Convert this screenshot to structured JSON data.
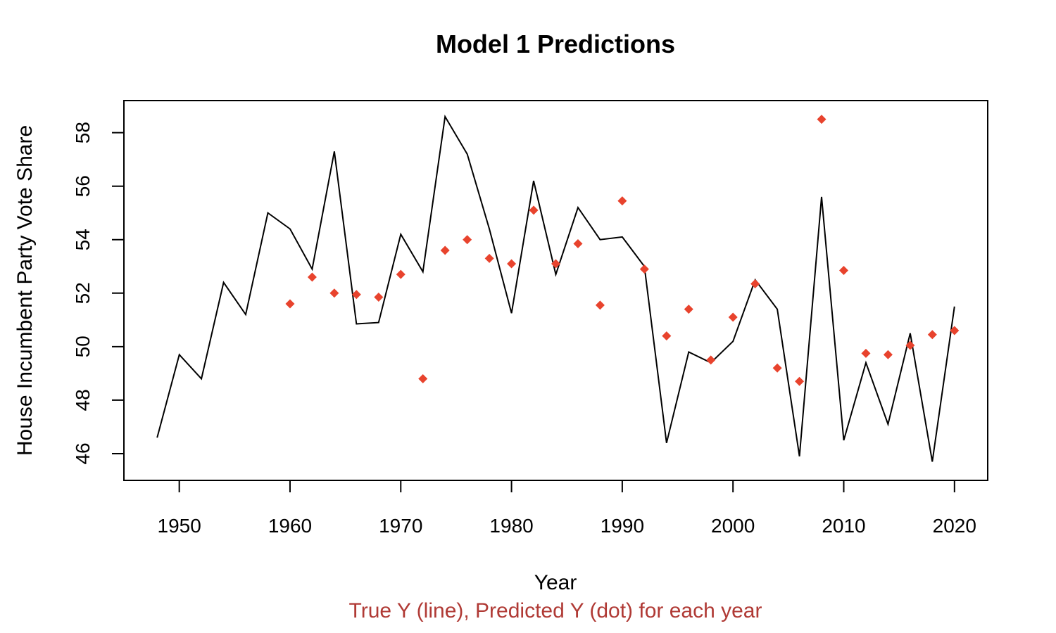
{
  "chart_data": {
    "type": "line",
    "title": "Model 1 Predictions",
    "xlabel": "Year",
    "ylabel": "House Incumbent Party Vote Share",
    "subtitle": "True Y (line), Predicted Y (dot) for each year",
    "xlim": [
      1945,
      2023
    ],
    "ylim": [
      45,
      59.2
    ],
    "x_ticks": [
      1950,
      1960,
      1970,
      1980,
      1990,
      2000,
      2010,
      2020
    ],
    "x_tick_labels": [
      "1950",
      "1960",
      "1970",
      "1980",
      "1990",
      "2000",
      "2010",
      "2020"
    ],
    "y_ticks": [
      46,
      48,
      50,
      52,
      54,
      56,
      58
    ],
    "y_tick_labels": [
      "46",
      "48",
      "50",
      "52",
      "54",
      "56",
      "58"
    ],
    "grid": false,
    "series": [
      {
        "kind": "line",
        "color": "#000000",
        "x": [
          1948,
          1950,
          1952,
          1954,
          1956,
          1958,
          1960,
          1962,
          1964,
          1966,
          1968,
          1970,
          1972,
          1974,
          1976,
          1978,
          1980,
          1982,
          1984,
          1986,
          1988,
          1990,
          1992,
          1994,
          1996,
          1998,
          2000,
          2002,
          2004,
          2006,
          2008,
          2010,
          2012,
          2014,
          2016,
          2018,
          2020
        ],
        "values": [
          46.6,
          49.7,
          48.8,
          52.4,
          51.2,
          55.0,
          54.4,
          52.9,
          57.3,
          50.85,
          50.9,
          54.2,
          52.8,
          58.6,
          57.2,
          54.4,
          51.25,
          56.2,
          52.7,
          55.2,
          54.0,
          54.1,
          53.0,
          46.4,
          49.8,
          49.4,
          50.2,
          52.5,
          51.4,
          45.9,
          55.6,
          46.5,
          49.4,
          47.1,
          50.5,
          45.7,
          51.5
        ]
      },
      {
        "kind": "points",
        "color": "#e8432d",
        "x": [
          1960,
          1962,
          1964,
          1966,
          1968,
          1970,
          1972,
          1974,
          1976,
          1978,
          1980,
          1982,
          1984,
          1986,
          1988,
          1990,
          1992,
          1994,
          1996,
          1998,
          2000,
          2002,
          2004,
          2006,
          2008,
          2010,
          2012,
          2014,
          2016,
          2018,
          2020
        ],
        "values": [
          51.6,
          52.6,
          52.0,
          51.95,
          51.85,
          52.7,
          48.8,
          53.6,
          54.0,
          53.3,
          53.1,
          55.1,
          53.1,
          53.85,
          51.55,
          55.45,
          52.9,
          50.4,
          51.4,
          49.5,
          51.1,
          52.35,
          49.2,
          48.7,
          58.5,
          52.85,
          49.75,
          49.7,
          50.05,
          50.45,
          50.6
        ]
      }
    ]
  }
}
